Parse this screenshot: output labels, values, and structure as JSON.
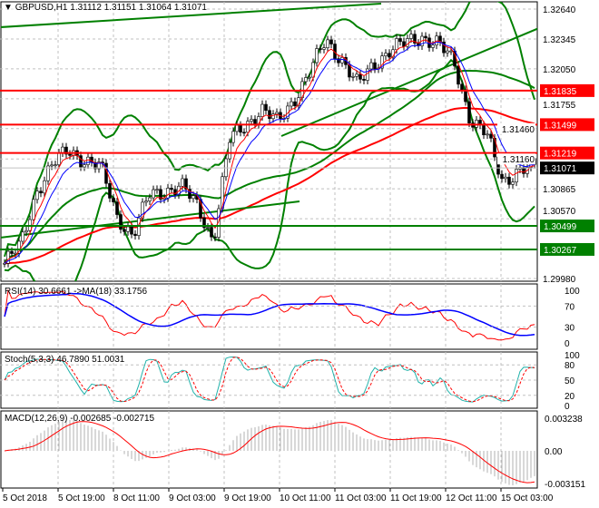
{
  "header": {
    "symbol": "GBPUSD,H1",
    "ohlc": "1.31112 1.31151 1.31064 1.31071"
  },
  "chart_data": {
    "type": "candlestick",
    "price_axis": {
      "ticks": [
        1.3264,
        1.32345,
        1.3205,
        1.31755,
        1.3146,
        1.3116,
        1.30865,
        1.3057,
        1.2998
      ],
      "labels": [
        "1.32640",
        "1.32345",
        "1.32050",
        "1.31755",
        "1.31460",
        "1.31160",
        "1.30865",
        "1.30570",
        "1.29980"
      ],
      "range": [
        1.2998,
        1.3264
      ]
    },
    "time_axis": [
      "5 Oct 2018",
      "5 Oct 19:00",
      "8 Oct 11:00",
      "9 Oct 03:00",
      "9 Oct 19:00",
      "10 Oct 11:00",
      "11 Oct 03:00",
      "11 Oct 19:00",
      "12 Oct 11:00",
      "15 Oct 03:00"
    ],
    "approx_close_path": [
      1.3013,
      1.303,
      1.3085,
      1.311,
      1.3125,
      1.3115,
      1.3107,
      1.306,
      1.304,
      1.308,
      1.3085,
      1.3089,
      1.307,
      1.3036,
      1.3134,
      1.315,
      1.3165,
      1.3152,
      1.3175,
      1.3201,
      1.3233,
      1.3215,
      1.3188,
      1.321,
      1.3224,
      1.323,
      1.3237,
      1.323,
      1.321,
      1.3156,
      1.314,
      1.3094,
      1.3105,
      1.3107
    ],
    "levels": [
      {
        "label": "1.31835",
        "price": 1.31835,
        "color": "#ff0000"
      },
      {
        "label": "1.31499",
        "price": 1.31499,
        "color": "#ff0000"
      },
      {
        "label": "1.31219",
        "price": 1.31219,
        "color": "#ff0000"
      },
      {
        "label": "1.30499",
        "price": 1.30499,
        "color": "#008000"
      },
      {
        "label": "1.30267",
        "price": 1.30267,
        "color": "#008000"
      }
    ],
    "current_price": {
      "label": "1.31071",
      "price": 1.31071
    },
    "indicators": {
      "rsi": {
        "title": "RSI(14) 30.6661  ->MA(18) 33.1756",
        "ticks": [
          "100",
          "70",
          "30",
          "0"
        ]
      },
      "stoch": {
        "title": "Stoch(5,3,3) 46.7890 51.0031",
        "ticks": [
          "100",
          "80",
          "50",
          "20",
          "0"
        ]
      },
      "macd": {
        "title": "MACD(12,26,9) -0.002685 -0.002715",
        "ticks": [
          "0.003238",
          "0.00",
          "-0.003151"
        ]
      }
    },
    "colors": {
      "bands": "#008000",
      "ma_fast": "#0000ff",
      "ma_slow": "#ff0000",
      "signal": "#ff0000",
      "stoch_main": "#20b2aa"
    }
  }
}
